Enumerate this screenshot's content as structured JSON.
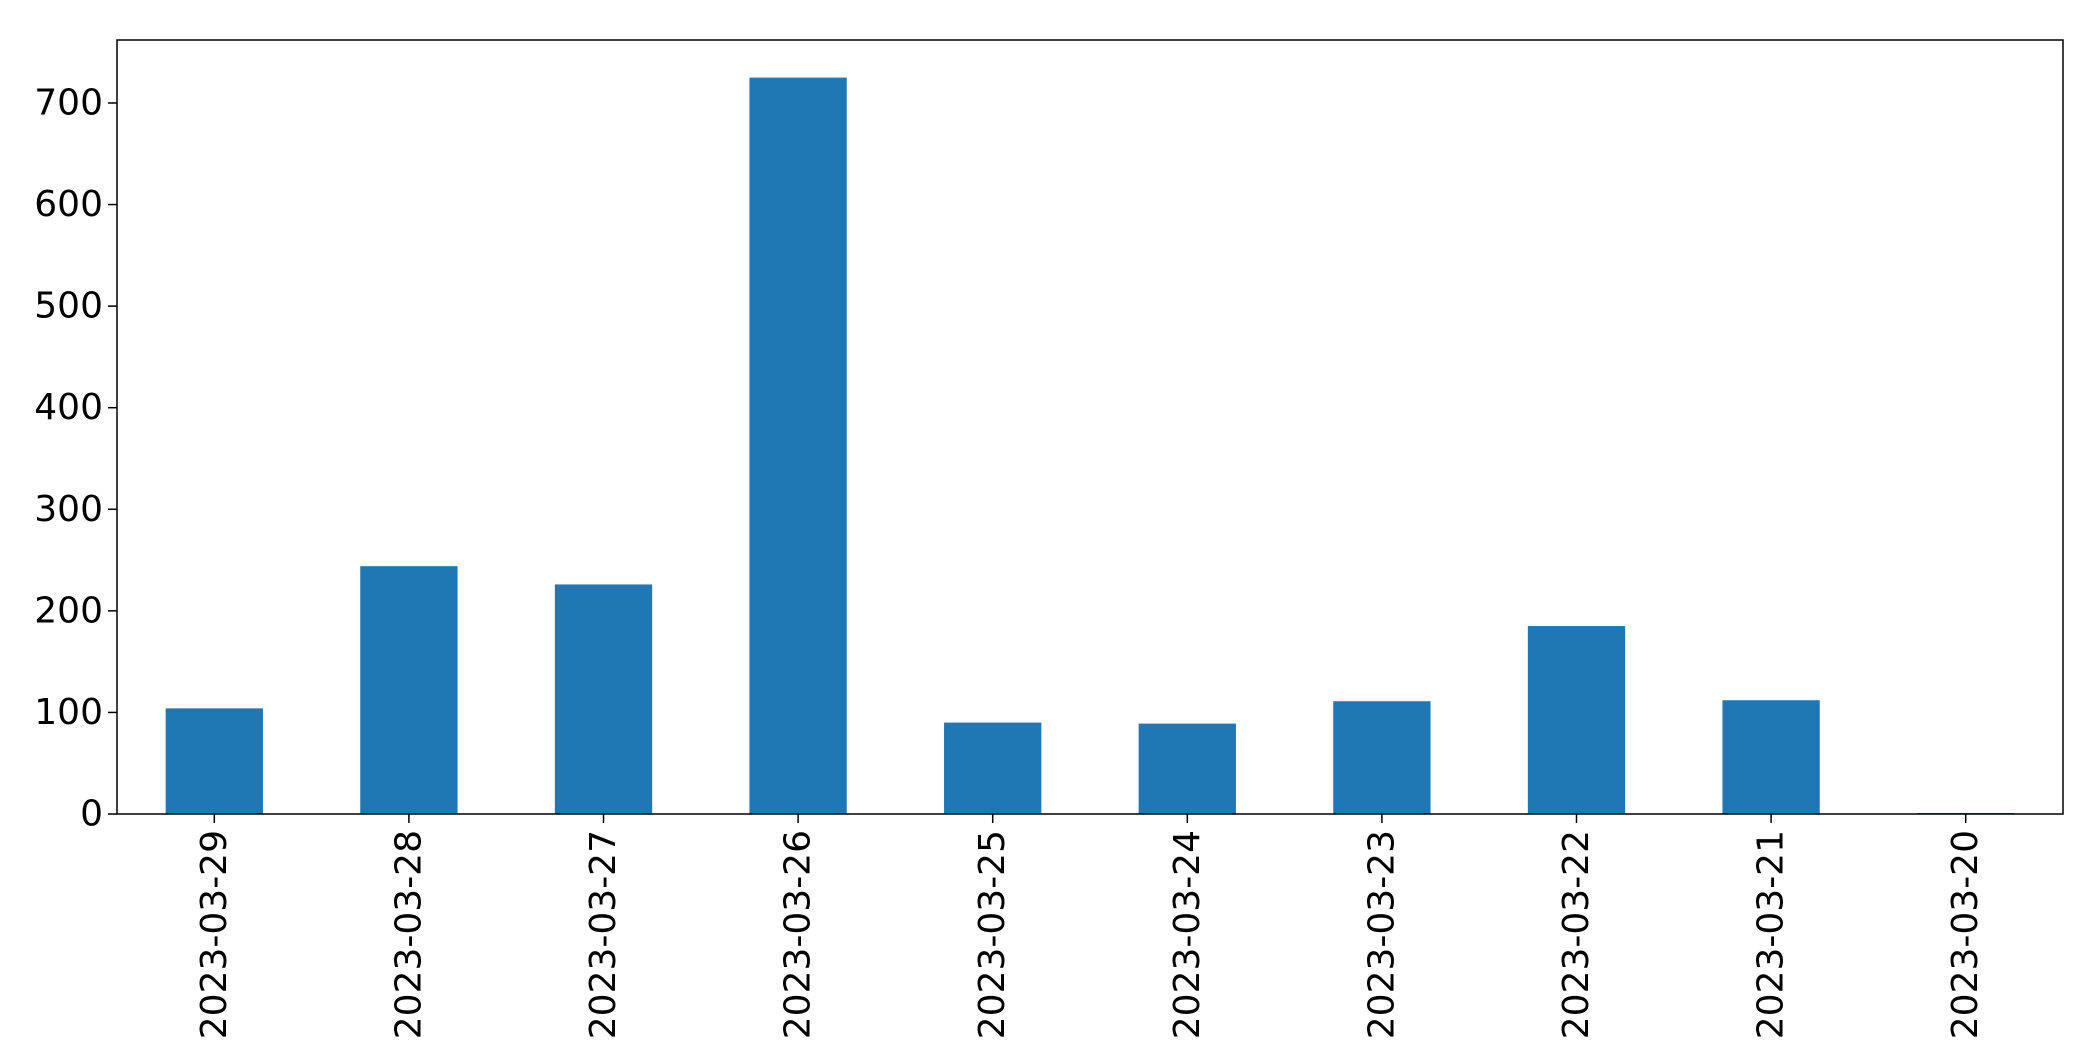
{
  "chart_data": {
    "type": "bar",
    "title": "",
    "xlabel": "",
    "ylabel": "",
    "categories": [
      "2023-03-29",
      "2023-03-28",
      "2023-03-27",
      "2023-03-26",
      "2023-03-25",
      "2023-03-24",
      "2023-03-23",
      "2023-03-22",
      "2023-03-21",
      "2023-03-20"
    ],
    "values": [
      104,
      244,
      226,
      725,
      90,
      89,
      111,
      185,
      112,
      1
    ],
    "ylim": [
      0,
      762
    ],
    "yticks": [
      0,
      100,
      200,
      300,
      400,
      500,
      600,
      700
    ],
    "ytick_labels": [
      "0",
      "100",
      "200",
      "300",
      "400",
      "500",
      "600",
      "700"
    ],
    "bar_color": "#1f77b4",
    "grid": false,
    "legend": "none"
  }
}
